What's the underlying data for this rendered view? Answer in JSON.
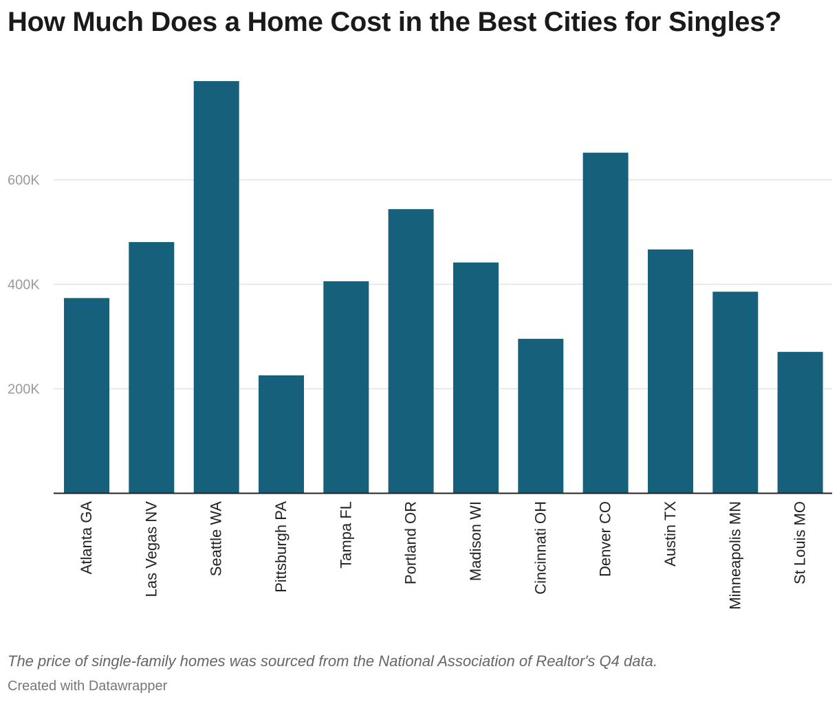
{
  "chart_data": {
    "type": "bar",
    "title": "How Much Does a Home Cost in the Best Cities for Singles?",
    "xlabel": "",
    "ylabel": "",
    "categories": [
      "Atlanta GA",
      "Las Vegas NV",
      "Seattle WA",
      "Pittsburgh PA",
      "Tampa FL",
      "Portland OR",
      "Madison WI",
      "Cincinnati OH",
      "Denver CO",
      "Austin TX",
      "Minneapolis MN",
      "St Louis MO"
    ],
    "values": [
      373000,
      480000,
      788000,
      225000,
      405000,
      543000,
      441000,
      295000,
      651000,
      466000,
      385000,
      270000
    ],
    "ylim": [
      0,
      788000
    ],
    "yticks": [
      200000,
      400000,
      600000
    ],
    "ytick_labels": [
      "200K",
      "400K",
      "600K"
    ],
    "grid": true,
    "bar_color": "#17607b"
  },
  "note": "The price of single-family homes was sourced from the National Association of Realtor's Q4 data.",
  "credit": "Created with Datawrapper"
}
